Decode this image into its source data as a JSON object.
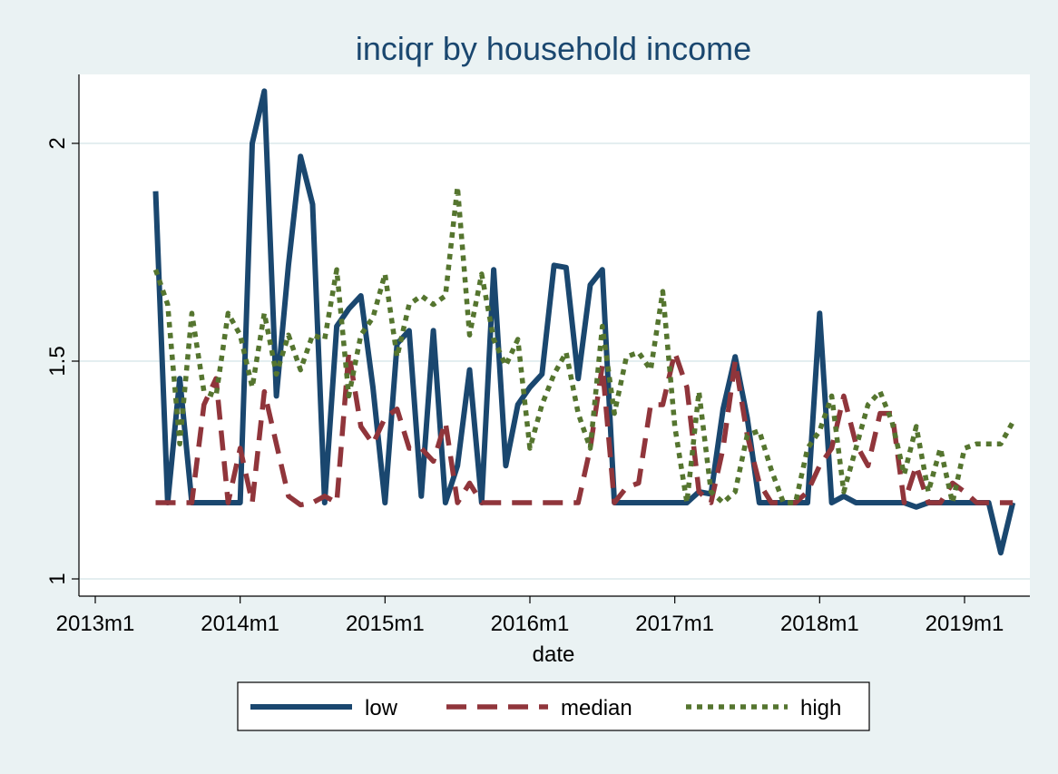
{
  "chart_data": {
    "type": "line",
    "title": "inciqr by household income",
    "xlabel": "date",
    "ylabel": "",
    "x_start": "2013m6",
    "x_end": "2019m5",
    "x_ticks": [
      "2013m1",
      "2014m1",
      "2015m1",
      "2016m1",
      "2017m1",
      "2018m1",
      "2019m1"
    ],
    "y_ticks": [
      1,
      1.5,
      2
    ],
    "ylim": [
      1,
      2.15
    ],
    "grid": true,
    "legend_position": "bottom",
    "colors": {
      "low": "#1a476f",
      "median": "#90353b",
      "high": "#55752f",
      "background": "#eaf2f3",
      "plot_bg": "#ffffff",
      "grid": "#e4eef0"
    },
    "series": [
      {
        "name": "low",
        "style": "solid",
        "values": [
          1.89,
          1.175,
          1.46,
          1.175,
          1.175,
          1.175,
          1.175,
          1.175,
          2.0,
          2.12,
          1.42,
          1.72,
          1.97,
          1.86,
          1.175,
          1.58,
          1.62,
          1.65,
          1.44,
          1.175,
          1.54,
          1.57,
          1.19,
          1.57,
          1.175,
          1.26,
          1.48,
          1.175,
          1.71,
          1.26,
          1.4,
          1.44,
          1.47,
          1.72,
          1.715,
          1.46,
          1.675,
          1.71,
          1.175,
          1.175,
          1.175,
          1.175,
          1.175,
          1.175,
          1.175,
          1.2,
          1.195,
          1.39,
          1.51,
          1.37,
          1.175,
          1.175,
          1.175,
          1.175,
          1.175,
          1.61,
          1.175,
          1.19,
          1.175,
          1.175,
          1.175,
          1.175,
          1.175,
          1.165,
          1.175,
          1.175,
          1.175,
          1.175,
          1.175,
          1.175,
          1.06,
          1.175
        ]
      },
      {
        "name": "median",
        "style": "dash",
        "values": [
          1.175,
          1.175,
          1.175,
          1.175,
          1.4,
          1.46,
          1.175,
          1.3,
          1.175,
          1.43,
          1.31,
          1.19,
          1.17,
          1.175,
          1.19,
          1.175,
          1.52,
          1.35,
          1.31,
          1.37,
          1.39,
          1.3,
          1.3,
          1.27,
          1.36,
          1.175,
          1.22,
          1.175,
          1.175,
          1.175,
          1.175,
          1.175,
          1.175,
          1.175,
          1.175,
          1.175,
          1.3,
          1.49,
          1.175,
          1.21,
          1.22,
          1.4,
          1.4,
          1.52,
          1.44,
          1.2,
          1.175,
          1.3,
          1.5,
          1.33,
          1.22,
          1.175,
          1.175,
          1.175,
          1.2,
          1.26,
          1.3,
          1.42,
          1.31,
          1.26,
          1.38,
          1.38,
          1.175,
          1.26,
          1.175,
          1.175,
          1.22,
          1.2,
          1.175,
          1.175,
          1.175,
          1.175
        ]
      },
      {
        "name": "high",
        "style": "dot",
        "values": [
          1.71,
          1.63,
          1.31,
          1.61,
          1.43,
          1.42,
          1.61,
          1.56,
          1.44,
          1.61,
          1.47,
          1.56,
          1.48,
          1.56,
          1.55,
          1.71,
          1.42,
          1.56,
          1.6,
          1.7,
          1.51,
          1.63,
          1.65,
          1.63,
          1.65,
          1.9,
          1.56,
          1.7,
          1.55,
          1.49,
          1.55,
          1.3,
          1.4,
          1.47,
          1.52,
          1.38,
          1.3,
          1.58,
          1.38,
          1.51,
          1.52,
          1.48,
          1.66,
          1.35,
          1.175,
          1.43,
          1.2,
          1.175,
          1.2,
          1.33,
          1.34,
          1.25,
          1.175,
          1.175,
          1.3,
          1.34,
          1.42,
          1.2,
          1.3,
          1.4,
          1.43,
          1.36,
          1.24,
          1.35,
          1.2,
          1.3,
          1.175,
          1.3,
          1.31,
          1.31,
          1.31,
          1.36
        ]
      }
    ]
  }
}
